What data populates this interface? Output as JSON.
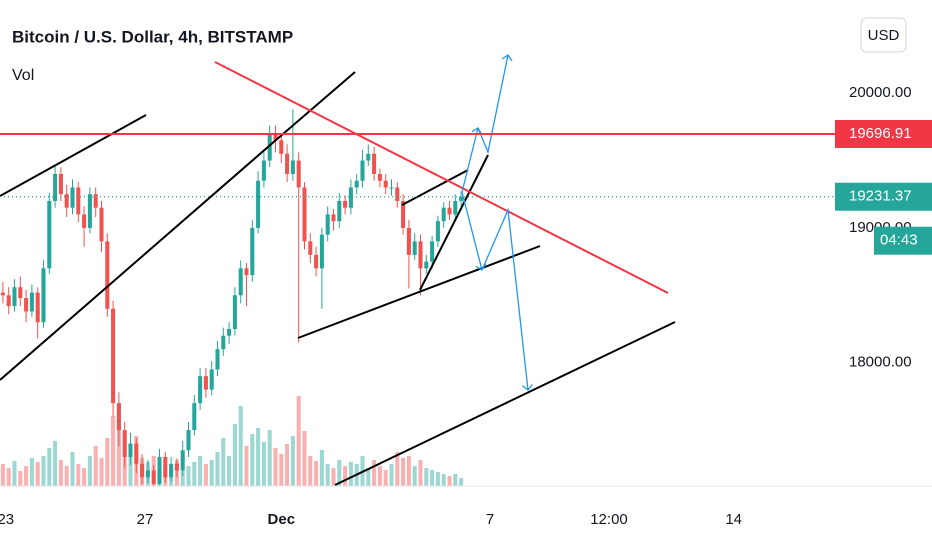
{
  "chart_data": {
    "type": "candlestick",
    "title": "Bitcoin / U.S. Dollar, 4h, BITSTAMP",
    "indicator": "Vol",
    "currency": "USD",
    "candles": [
      [
        18520,
        18600,
        18440,
        18500
      ],
      [
        18500,
        18560,
        18360,
        18420
      ],
      [
        18420,
        18620,
        18380,
        18560
      ],
      [
        18560,
        18640,
        18420,
        18480
      ],
      [
        18480,
        18540,
        18300,
        18380
      ],
      [
        18380,
        18580,
        18340,
        18520
      ],
      [
        18520,
        18560,
        18180,
        18300
      ],
      [
        18300,
        18760,
        18260,
        18700
      ],
      [
        18700,
        19260,
        18660,
        19200
      ],
      [
        19200,
        19460,
        19150,
        19400
      ],
      [
        19400,
        19450,
        19200,
        19250
      ],
      [
        19250,
        19320,
        19080,
        19150
      ],
      [
        19150,
        19360,
        19100,
        19300
      ],
      [
        19300,
        19340,
        19040,
        19100
      ],
      [
        19100,
        19160,
        18860,
        19000
      ],
      [
        19000,
        19300,
        18960,
        19250
      ],
      [
        19250,
        19300,
        19080,
        19150
      ],
      [
        19150,
        19200,
        18820,
        18900
      ],
      [
        18900,
        18960,
        18340,
        18400
      ],
      [
        18400,
        18460,
        17600,
        17700
      ],
      [
        17700,
        17780,
        17380,
        17500
      ],
      [
        17500,
        17560,
        17220,
        17300
      ],
      [
        17300,
        17480,
        17240,
        17400
      ],
      [
        17400,
        17440,
        17180,
        17250
      ],
      [
        17250,
        17320,
        17100,
        17150
      ],
      [
        17150,
        17280,
        17110,
        17200
      ],
      [
        17200,
        17240,
        17090,
        17100
      ],
      [
        17100,
        17360,
        17090,
        17300
      ],
      [
        17300,
        17340,
        17110,
        17150
      ],
      [
        17150,
        17300,
        17120,
        17250
      ],
      [
        17250,
        17290,
        17150,
        17200
      ],
      [
        17200,
        17420,
        17160,
        17350
      ],
      [
        17350,
        17560,
        17300,
        17500
      ],
      [
        17500,
        17760,
        17460,
        17700
      ],
      [
        17700,
        17960,
        17650,
        17900
      ],
      [
        17900,
        17960,
        17740,
        17800
      ],
      [
        17800,
        18010,
        17760,
        17950
      ],
      [
        17950,
        18160,
        17900,
        18100
      ],
      [
        18100,
        18260,
        18050,
        18200
      ],
      [
        18200,
        18300,
        18140,
        18250
      ],
      [
        18250,
        18560,
        18200,
        18500
      ],
      [
        18500,
        18760,
        18440,
        18700
      ],
      [
        18700,
        18740,
        18420,
        18650
      ],
      [
        18650,
        19060,
        18600,
        19000
      ],
      [
        19000,
        19420,
        18960,
        19350
      ],
      [
        19350,
        19560,
        19300,
        19500
      ],
      [
        19500,
        19760,
        19450,
        19700
      ],
      [
        19700,
        19760,
        19560,
        19650
      ],
      [
        19650,
        19700,
        19480,
        19550
      ],
      [
        19550,
        19620,
        19340,
        19400
      ],
      [
        19400,
        19880,
        19350,
        19500
      ],
      [
        19500,
        19560,
        18150,
        19300
      ],
      [
        19300,
        19340,
        18840,
        18900
      ],
      [
        18900,
        18960,
        18740,
        18800
      ],
      [
        18800,
        18860,
        18640,
        18700
      ],
      [
        18700,
        19000,
        18400,
        18950
      ],
      [
        18950,
        19160,
        18900,
        19100
      ],
      [
        19100,
        19140,
        18980,
        19050
      ],
      [
        19050,
        19260,
        19000,
        19200
      ],
      [
        19200,
        19240,
        19100,
        19150
      ],
      [
        19150,
        19360,
        19100,
        19300
      ],
      [
        19300,
        19400,
        19250,
        19350
      ],
      [
        19350,
        19580,
        19300,
        19500
      ],
      [
        19500,
        19620,
        19460,
        19550
      ],
      [
        19550,
        19600,
        19350,
        19400
      ],
      [
        19400,
        19440,
        19300,
        19350
      ],
      [
        19350,
        19400,
        19250,
        19300
      ],
      [
        19300,
        19360,
        19240,
        19300
      ],
      [
        19300,
        19340,
        19150,
        19200
      ],
      [
        19200,
        19250,
        18950,
        19000
      ],
      [
        19000,
        19060,
        18550,
        18800
      ],
      [
        18800,
        18960,
        18760,
        18900
      ],
      [
        18900,
        18950,
        18500,
        18700
      ],
      [
        18700,
        18800,
        18660,
        18750
      ],
      [
        18750,
        18940,
        18700,
        18900
      ],
      [
        18900,
        19090,
        18860,
        19050
      ],
      [
        19050,
        19190,
        19000,
        19150
      ],
      [
        19150,
        19200,
        19060,
        19100
      ],
      [
        19100,
        19250,
        19060,
        19200
      ],
      [
        19200,
        19270,
        19160,
        19231
      ]
    ],
    "volume": [
      22,
      18,
      25,
      15,
      20,
      28,
      24,
      30,
      38,
      45,
      26,
      20,
      34,
      22,
      18,
      30,
      40,
      28,
      48,
      70,
      60,
      44,
      35,
      50,
      28,
      24,
      30,
      22,
      20,
      18,
      26,
      15,
      20,
      24,
      30,
      22,
      26,
      34,
      48,
      30,
      62,
      80,
      40,
      52,
      58,
      44,
      56,
      38,
      32,
      42,
      50,
      90,
      55,
      30,
      25,
      36,
      22,
      18,
      26,
      20,
      24,
      22,
      30,
      18,
      26,
      20,
      16,
      22,
      34,
      28,
      30,
      20,
      26,
      18,
      16,
      14,
      12,
      10,
      12,
      8
    ],
    "volume_ylim": [
      0,
      100
    ],
    "ylim": [
      17085,
      20691
    ],
    "yticks": [
      {
        "value": 20000,
        "label": "20000.00"
      },
      {
        "value": 19000,
        "label": "19000.00"
      },
      {
        "value": 18000,
        "label": "18000.00"
      }
    ],
    "xlim": [
      0,
      160
    ],
    "xticks": [
      {
        "value": 1,
        "label": "23"
      },
      {
        "value": 25,
        "label": "27"
      },
      {
        "value": 48.5,
        "label": "Dec"
      },
      {
        "value": 84.5,
        "label": "7"
      },
      {
        "value": 105,
        "label": "12:00"
      },
      {
        "value": 126.5,
        "label": "14"
      }
    ],
    "level_price": {
      "value": 19696.91,
      "label": "19696.91",
      "color": "#f23645"
    },
    "last_price": {
      "value": 19231.37,
      "label": "19231.37",
      "color": "#26a69a"
    },
    "countdown": "04:43",
    "up_color": "#26a69a",
    "down_color": "#ef5350"
  }
}
